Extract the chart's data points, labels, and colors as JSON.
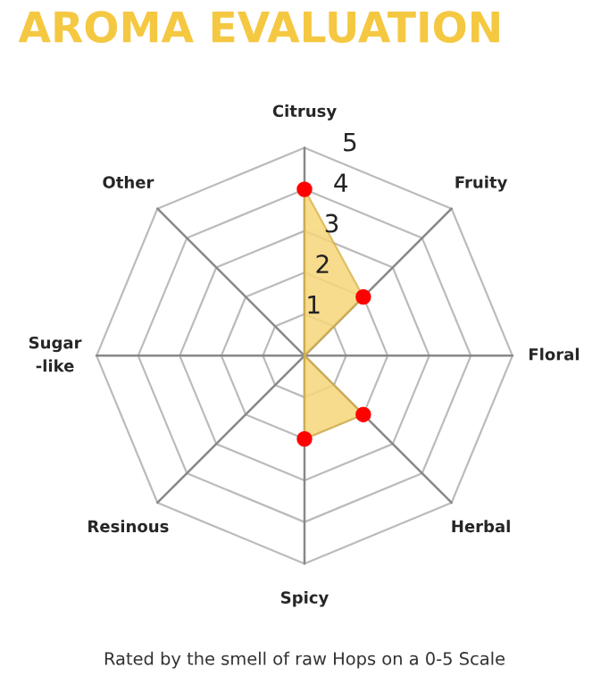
{
  "chart_data": {
    "type": "radar",
    "title": "AROMA EVALUATION",
    "categories": [
      "Citrusy",
      "Fruity",
      "Floral",
      "Herbal",
      "Spicy",
      "Resinous",
      "Sugar\n-like",
      "Other"
    ],
    "series": [
      {
        "color": "#f7d77a",
        "values": [
          4,
          2,
          0,
          2,
          2,
          0,
          0,
          0
        ]
      }
    ],
    "ylim": [
      0,
      5
    ],
    "yticks": [
      1,
      2,
      3,
      4,
      5
    ],
    "marker": "circle",
    "grid": true,
    "annotations": [
      "Rated by the smell of raw Hops on a 0-5 Scale"
    ]
  }
}
